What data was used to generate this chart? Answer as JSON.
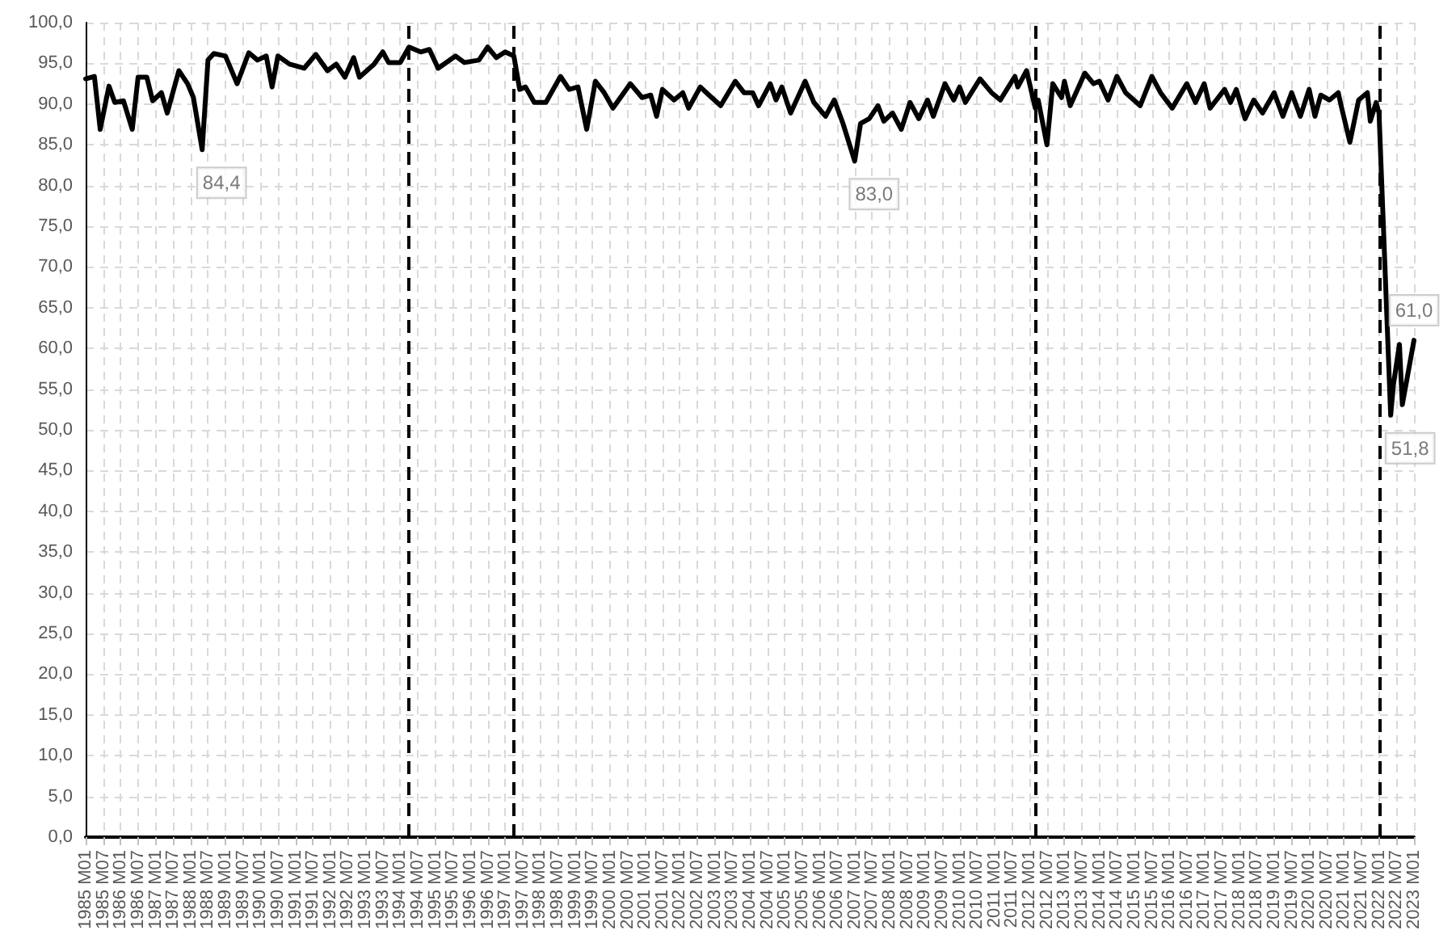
{
  "chart_data": {
    "type": "line",
    "x": [
      "1985-01",
      "1985-04",
      "1985-06",
      "1985-09",
      "1985-11",
      "1986-02",
      "1986-05",
      "1986-07",
      "1986-10",
      "1986-12",
      "1987-03",
      "1987-05",
      "1987-09",
      "1987-12",
      "1988-02",
      "1988-05",
      "1988-07",
      "1988-09",
      "1989-01",
      "1989-05",
      "1989-09",
      "1989-12",
      "1990-03",
      "1990-05",
      "1990-07",
      "1990-11",
      "1991-04",
      "1991-08",
      "1991-12",
      "1992-03",
      "1992-06",
      "1992-09",
      "1992-11",
      "1993-04",
      "1993-07",
      "1993-09",
      "1994-01",
      "1994-04",
      "1994-08",
      "1994-11",
      "1995-02",
      "1995-08",
      "1995-11",
      "1996-04",
      "1996-07",
      "1996-10",
      "1997-01",
      "1997-04",
      "1997-06",
      "1997-08",
      "1997-11",
      "1998-03",
      "1998-08",
      "1998-11",
      "1999-02",
      "1999-05",
      "1999-08",
      "1999-11",
      "2000-02",
      "2000-08",
      "2000-12",
      "2001-03",
      "2001-05",
      "2001-07",
      "2001-11",
      "2002-02",
      "2002-04",
      "2002-08",
      "2002-11",
      "2003-03",
      "2003-08",
      "2003-11",
      "2004-02",
      "2004-04",
      "2004-08",
      "2004-10",
      "2004-12",
      "2005-03",
      "2005-08",
      "2005-11",
      "2006-03",
      "2006-06",
      "2006-09",
      "2007-01",
      "2007-03",
      "2007-06",
      "2007-09",
      "2007-11",
      "2008-02",
      "2008-05",
      "2008-08",
      "2008-11",
      "2009-02",
      "2009-04",
      "2009-08",
      "2009-11",
      "2010-01",
      "2010-03",
      "2010-08",
      "2010-12",
      "2011-03",
      "2011-08",
      "2011-09",
      "2011-12",
      "2012-03",
      "2012-04",
      "2012-07",
      "2012-09",
      "2012-12",
      "2013-01",
      "2013-03",
      "2013-08",
      "2013-11",
      "2014-01",
      "2014-04",
      "2014-07",
      "2014-10",
      "2015-03",
      "2015-07",
      "2015-10",
      "2016-02",
      "2016-07",
      "2016-10",
      "2017-01",
      "2017-03",
      "2017-08",
      "2017-10",
      "2017-12",
      "2018-03",
      "2018-06",
      "2018-09",
      "2019-01",
      "2019-04",
      "2019-07",
      "2019-10",
      "2020-01",
      "2020-03",
      "2020-05",
      "2020-08",
      "2020-11",
      "2020-12",
      "2021-03",
      "2021-06",
      "2021-09",
      "2021-10",
      "2021-12",
      "2022-01",
      "2022-05",
      "2022-06",
      "2022-08",
      "2022-09",
      "2023-01"
    ],
    "series": [
      {
        "color": "#000000",
        "values": [
          93.1,
          93.4,
          86.9,
          92.2,
          90.2,
          90.4,
          86.9,
          93.3,
          93.3,
          90.4,
          91.4,
          88.9,
          94.1,
          92.5,
          90.8,
          84.4,
          95.4,
          96.2,
          95.9,
          92.5,
          96.3,
          95.4,
          95.9,
          92.1,
          95.9,
          94.9,
          94.4,
          96.1,
          94.1,
          94.9,
          93.3,
          95.7,
          93.3,
          94.9,
          96.4,
          95.1,
          95.1,
          97.0,
          96.4,
          96.7,
          94.4,
          95.9,
          95.1,
          95.4,
          97.0,
          95.7,
          96.4,
          95.9,
          91.8,
          92.1,
          90.2,
          90.2,
          93.4,
          91.8,
          92.1,
          86.9,
          92.8,
          91.4,
          89.5,
          92.5,
          90.8,
          91.1,
          88.5,
          91.8,
          90.5,
          91.4,
          89.5,
          92.1,
          91.1,
          89.8,
          92.8,
          91.4,
          91.4,
          89.8,
          92.5,
          90.5,
          92.1,
          88.9,
          92.8,
          90.2,
          88.5,
          90.5,
          87.6,
          83.0,
          87.6,
          88.2,
          89.8,
          87.9,
          88.9,
          86.9,
          90.2,
          88.2,
          90.5,
          88.5,
          92.5,
          90.5,
          92.1,
          90.2,
          93.1,
          91.4,
          90.5,
          93.4,
          92.1,
          94.1,
          89.5,
          90.5,
          85.0,
          92.5,
          90.8,
          92.8,
          89.8,
          93.8,
          92.5,
          92.8,
          90.5,
          93.4,
          91.4,
          89.8,
          93.4,
          91.4,
          89.5,
          92.5,
          90.2,
          92.5,
          89.5,
          91.8,
          90.2,
          91.8,
          88.2,
          90.5,
          88.9,
          91.4,
          88.5,
          91.4,
          88.5,
          91.8,
          88.5,
          91.1,
          90.5,
          91.4,
          89.8,
          85.3,
          90.5,
          91.4,
          87.9,
          90.2,
          88.9,
          51.8,
          55.7,
          60.5,
          53.1,
          61.0
        ]
      }
    ],
    "xlim": [
      "1985-01",
      "2023-01"
    ],
    "xticks": [
      {
        "value": "1985-01",
        "label": "1985 M01"
      },
      {
        "value": "1985-07",
        "label": "1985 M07"
      },
      {
        "value": "1986-01",
        "label": "1986 M01"
      },
      {
        "value": "1986-07",
        "label": "1986 M07"
      },
      {
        "value": "1987-01",
        "label": "1987 M01"
      },
      {
        "value": "1987-07",
        "label": "1987 M07"
      },
      {
        "value": "1988-01",
        "label": "1988 M01"
      },
      {
        "value": "1988-07",
        "label": "1988 M07"
      },
      {
        "value": "1989-01",
        "label": "1989 M01"
      },
      {
        "value": "1989-07",
        "label": "1989 M07"
      },
      {
        "value": "1990-01",
        "label": "1990 M01"
      },
      {
        "value": "1990-07",
        "label": "1990 M07"
      },
      {
        "value": "1991-01",
        "label": "1991 M01"
      },
      {
        "value": "1991-07",
        "label": "1991 M07"
      },
      {
        "value": "1992-01",
        "label": "1992 M01"
      },
      {
        "value": "1992-07",
        "label": "1992 M07"
      },
      {
        "value": "1993-01",
        "label": "1993 M01"
      },
      {
        "value": "1993-07",
        "label": "1993 M07"
      },
      {
        "value": "1994-01",
        "label": "1994 M01"
      },
      {
        "value": "1994-07",
        "label": "1994 M07"
      },
      {
        "value": "1995-01",
        "label": "1995 M01"
      },
      {
        "value": "1995-07",
        "label": "1995 M07"
      },
      {
        "value": "1996-01",
        "label": "1996 M01"
      },
      {
        "value": "1996-07",
        "label": "1996 M07"
      },
      {
        "value": "1997-01",
        "label": "1997 M01"
      },
      {
        "value": "1997-07",
        "label": "1997 M07"
      },
      {
        "value": "1998-01",
        "label": "1998 M01"
      },
      {
        "value": "1998-07",
        "label": "1998 M07"
      },
      {
        "value": "1999-01",
        "label": "1999 M01"
      },
      {
        "value": "1999-07",
        "label": "1999 M07"
      },
      {
        "value": "2000-01",
        "label": "2000 M01"
      },
      {
        "value": "2000-07",
        "label": "2000 M07"
      },
      {
        "value": "2001-01",
        "label": "2001 M01"
      },
      {
        "value": "2001-07",
        "label": "2001 M07"
      },
      {
        "value": "2002-01",
        "label": "2002 M01"
      },
      {
        "value": "2002-07",
        "label": "2002 M07"
      },
      {
        "value": "2003-01",
        "label": "2003 M01"
      },
      {
        "value": "2003-07",
        "label": "2003 M07"
      },
      {
        "value": "2004-01",
        "label": "2004 M01"
      },
      {
        "value": "2004-07",
        "label": "2004 M07"
      },
      {
        "value": "2005-01",
        "label": "2005 M01"
      },
      {
        "value": "2005-07",
        "label": "2005 M07"
      },
      {
        "value": "2006-01",
        "label": "2006 M01"
      },
      {
        "value": "2006-07",
        "label": "2006 M07"
      },
      {
        "value": "2007-01",
        "label": "2007 M01"
      },
      {
        "value": "2007-07",
        "label": "2007 M07"
      },
      {
        "value": "2008-01",
        "label": "2008 M01"
      },
      {
        "value": "2008-07",
        "label": "2008 M07"
      },
      {
        "value": "2009-01",
        "label": "2009 M01"
      },
      {
        "value": "2009-07",
        "label": "2009 M07"
      },
      {
        "value": "2010-01",
        "label": "2010 M01"
      },
      {
        "value": "2010-07",
        "label": "2010 M07"
      },
      {
        "value": "2011-01",
        "label": "2011 M01"
      },
      {
        "value": "2011-07",
        "label": "2011 M07"
      },
      {
        "value": "2012-01",
        "label": "2012 M01"
      },
      {
        "value": "2012-07",
        "label": "2012 M07"
      },
      {
        "value": "2013-01",
        "label": "2013 M01"
      },
      {
        "value": "2013-07",
        "label": "2013 M07"
      },
      {
        "value": "2014-01",
        "label": "2014 M01"
      },
      {
        "value": "2014-07",
        "label": "2014 M07"
      },
      {
        "value": "2015-01",
        "label": "2015 M01"
      },
      {
        "value": "2015-07",
        "label": "2015 M07"
      },
      {
        "value": "2016-01",
        "label": "2016 M01"
      },
      {
        "value": "2016-07",
        "label": "2016 M07"
      },
      {
        "value": "2017-01",
        "label": "2017 M01"
      },
      {
        "value": "2017-07",
        "label": "2017 M07"
      },
      {
        "value": "2018-01",
        "label": "2018 M01"
      },
      {
        "value": "2018-07",
        "label": "2018 M07"
      },
      {
        "value": "2019-01",
        "label": "2019 M01"
      },
      {
        "value": "2019-07",
        "label": "2019 M07"
      },
      {
        "value": "2020-01",
        "label": "2020 M01"
      },
      {
        "value": "2020-07",
        "label": "2020 M07"
      },
      {
        "value": "2021-01",
        "label": "2021 M01"
      },
      {
        "value": "2021-07",
        "label": "2021 M07"
      },
      {
        "value": "2022-01",
        "label": "2022 M01"
      },
      {
        "value": "2022-07",
        "label": "2022 M07"
      },
      {
        "value": "2023-01",
        "label": "2023 M01"
      }
    ],
    "ylim": [
      0,
      100
    ],
    "yticks": [
      {
        "value": 0,
        "label": "0,0"
      },
      {
        "value": 5,
        "label": "5,0"
      },
      {
        "value": 10,
        "label": "10,0"
      },
      {
        "value": 15,
        "label": "15,0"
      },
      {
        "value": 20,
        "label": "20,0"
      },
      {
        "value": 25,
        "label": "25,0"
      },
      {
        "value": 30,
        "label": "30,0"
      },
      {
        "value": 35,
        "label": "35,0"
      },
      {
        "value": 40,
        "label": "40,0"
      },
      {
        "value": 45,
        "label": "45,0"
      },
      {
        "value": 50,
        "label": "50,0"
      },
      {
        "value": 55,
        "label": "55,0"
      },
      {
        "value": 60,
        "label": "60,0"
      },
      {
        "value": 65,
        "label": "65,0"
      },
      {
        "value": 70,
        "label": "70,0"
      },
      {
        "value": 75,
        "label": "75,0"
      },
      {
        "value": 80,
        "label": "80,0"
      },
      {
        "value": 85,
        "label": "85,0"
      },
      {
        "value": 90,
        "label": "90,0"
      },
      {
        "value": 95,
        "label": "95,0"
      },
      {
        "value": 100,
        "label": "100,0"
      }
    ],
    "ref_lines": [
      {
        "axis": "x",
        "value": "1994-04",
        "color": "#000000",
        "line_style": "dashed"
      },
      {
        "axis": "x",
        "value": "1997-04",
        "color": "#000000",
        "line_style": "dashed"
      },
      {
        "axis": "x",
        "value": "2012-03",
        "color": "#000000",
        "line_style": "dashed"
      },
      {
        "axis": "x",
        "value": "2022-01",
        "color": "#000000",
        "line_style": "dashed"
      }
    ],
    "annotations": [
      {
        "text": "84,4",
        "x": "1988-05",
        "y": 84.4
      },
      {
        "text": "83,0",
        "x": "2007-01",
        "y": 83.0
      },
      {
        "text": "51,8",
        "x": "2022-05",
        "y": 51.8
      },
      {
        "text": "61,0",
        "x": "2023-01",
        "y": 61.0
      }
    ],
    "grid": true,
    "marker": "none",
    "line_style": "solid"
  }
}
